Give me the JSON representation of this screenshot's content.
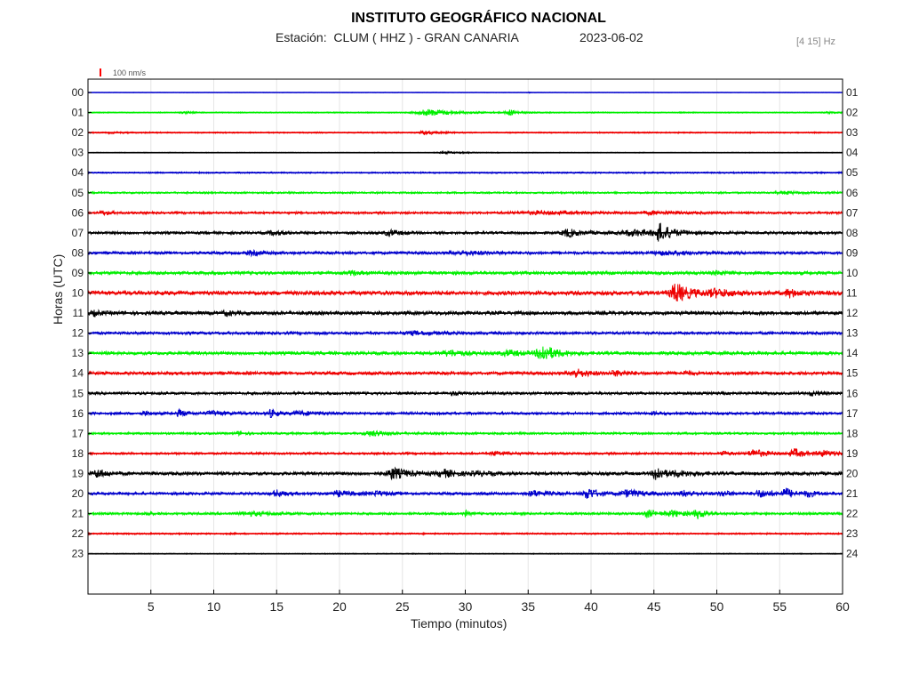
{
  "header": {
    "title": "INSTITUTO GEOGRÁFICO NACIONAL",
    "station": "Estación:  CLUM ( HHZ ) - GRAN CANARIA",
    "date": "2023-06-02",
    "filter": "[4 15] Hz"
  },
  "chart_data": {
    "type": "line",
    "title": "INSTITUTO GEOGRÁFICO NACIONAL",
    "xlabel": "Tiempo (minutos)",
    "ylabel": "Horas (UTC)",
    "xlim": [
      0,
      60
    ],
    "x_ticks": [
      5,
      10,
      15,
      20,
      25,
      30,
      35,
      40,
      45,
      50,
      55,
      60
    ],
    "grid": "vertical",
    "scale_label": "100 nm/s",
    "scale_color": "#ff0000",
    "left_labels": [
      "00",
      "01",
      "02",
      "03",
      "04",
      "05",
      "06",
      "07",
      "08",
      "09",
      "10",
      "11",
      "12",
      "13",
      "14",
      "15",
      "16",
      "17",
      "18",
      "19",
      "20",
      "21",
      "22",
      "23"
    ],
    "right_labels": [
      "01",
      "02",
      "03",
      "04",
      "05",
      "06",
      "07",
      "08",
      "09",
      "10",
      "11",
      "12",
      "13",
      "14",
      "15",
      "16",
      "17",
      "18",
      "19",
      "20",
      "21",
      "22",
      "23",
      "24"
    ],
    "trace_colors": [
      "#0000cc",
      "#00ee00",
      "#ee0000",
      "#000000"
    ],
    "traces": [
      {
        "hour": "00",
        "noise": 0.2,
        "events": [
          [
            35,
            0.6,
            0.3
          ]
        ]
      },
      {
        "hour": "01",
        "noise": 0.6,
        "events": [
          [
            7.7,
            1.2,
            0.6
          ],
          [
            27.2,
            3.5,
            2.0
          ],
          [
            33.5,
            3.2,
            0.6
          ],
          [
            59,
            0.8,
            0.8
          ]
        ]
      },
      {
        "hour": "02",
        "noise": 0.7,
        "events": [
          [
            26.8,
            2.4,
            0.8
          ],
          [
            2,
            0.6,
            1.0
          ]
        ]
      },
      {
        "hour": "03",
        "noise": 0.4,
        "events": [
          [
            28.5,
            1.2,
            1.2
          ]
        ]
      },
      {
        "hour": "04",
        "noise": 0.8,
        "events": []
      },
      {
        "hour": "05",
        "noise": 1.0,
        "events": [
          [
            55.5,
            1.4,
            1.5
          ]
        ]
      },
      {
        "hour": "06",
        "noise": 1.2,
        "events": [
          [
            1.2,
            2.0,
            0.6
          ],
          [
            36,
            1.5,
            4.0
          ],
          [
            45,
            1.2,
            2.0
          ]
        ]
      },
      {
        "hour": "07",
        "noise": 1.5,
        "events": [
          [
            14.8,
            2.0,
            1.0
          ],
          [
            24,
            3.0,
            0.8
          ],
          [
            38.2,
            4.0,
            1.0
          ],
          [
            43.5,
            3.0,
            2.0
          ],
          [
            45.5,
            9.0,
            0.8
          ]
        ]
      },
      {
        "hour": "08",
        "noise": 1.5,
        "events": [
          [
            13,
            2.0,
            1.0
          ],
          [
            30,
            1.8,
            2.0
          ],
          [
            46,
            1.8,
            2.0
          ]
        ]
      },
      {
        "hour": "09",
        "noise": 1.8,
        "events": [
          [
            21,
            1.8,
            0.5
          ],
          [
            50,
            1.8,
            0.6
          ]
        ]
      },
      {
        "hour": "10",
        "noise": 2.2,
        "events": [
          [
            46.8,
            10.0,
            1.0
          ],
          [
            50,
            3.5,
            1.3
          ],
          [
            55.8,
            4.0,
            0.7
          ]
        ]
      },
      {
        "hour": "11",
        "noise": 2.0,
        "events": [
          [
            11,
            2.0,
            0.6
          ],
          [
            0.5,
            2.2,
            0.5
          ]
        ]
      },
      {
        "hour": "12",
        "noise": 1.5,
        "events": [
          [
            26,
            1.5,
            2.0
          ]
        ]
      },
      {
        "hour": "13",
        "noise": 1.8,
        "events": [
          [
            28.8,
            3.0,
            1.0
          ],
          [
            33.5,
            2.5,
            1.2
          ],
          [
            36.2,
            9.0,
            0.9
          ]
        ]
      },
      {
        "hour": "14",
        "noise": 1.7,
        "events": [
          [
            38.8,
            4.5,
            0.9
          ],
          [
            42,
            2.2,
            1.0
          ],
          [
            47.5,
            2.0,
            0.5
          ]
        ]
      },
      {
        "hour": "15",
        "noise": 1.5,
        "events": [
          [
            29,
            1.6,
            0.4
          ],
          [
            57.6,
            2.2,
            0.6
          ]
        ]
      },
      {
        "hour": "16",
        "noise": 1.4,
        "events": [
          [
            4.5,
            2.0,
            0.5
          ],
          [
            7.3,
            3.5,
            0.5
          ],
          [
            10,
            2.0,
            1.2
          ],
          [
            14.5,
            4.0,
            0.5
          ],
          [
            17,
            1.8,
            1.5
          ],
          [
            45,
            1.4,
            0.5
          ]
        ]
      },
      {
        "hour": "17",
        "noise": 1.2,
        "events": [
          [
            12,
            1.5,
            0.6
          ],
          [
            22.6,
            3.0,
            1.0
          ]
        ]
      },
      {
        "hour": "18",
        "noise": 1.2,
        "events": [
          [
            32.5,
            2.0,
            1.0
          ],
          [
            50.5,
            2.5,
            0.5
          ],
          [
            53,
            4.0,
            1.0
          ],
          [
            56.2,
            4.5,
            0.7
          ],
          [
            58.5,
            2.8,
            1.0
          ]
        ]
      },
      {
        "hour": "19",
        "noise": 1.8,
        "events": [
          [
            0.8,
            4.5,
            0.6
          ],
          [
            24.3,
            6.0,
            1.0
          ],
          [
            28.3,
            4.0,
            0.9
          ],
          [
            31,
            2.0,
            0.8
          ],
          [
            45.2,
            9.0,
            0.5
          ],
          [
            47,
            2.4,
            1.2
          ]
        ]
      },
      {
        "hour": "20",
        "noise": 1.5,
        "events": [
          [
            15,
            3.5,
            0.6
          ],
          [
            20,
            2.5,
            1.2
          ],
          [
            23,
            2.0,
            0.8
          ],
          [
            35.5,
            3.0,
            1.0
          ],
          [
            39.8,
            6.0,
            0.7
          ],
          [
            43,
            3.5,
            1.3
          ],
          [
            47.5,
            3.0,
            0.8
          ],
          [
            50.5,
            2.5,
            0.7
          ],
          [
            53.5,
            3.5,
            1.0
          ],
          [
            55.5,
            5.0,
            0.6
          ],
          [
            57.3,
            3.0,
            0.6
          ]
        ]
      },
      {
        "hour": "21",
        "noise": 1.3,
        "events": [
          [
            4.7,
            2.2,
            0.3
          ],
          [
            13,
            2.0,
            1.8
          ],
          [
            30,
            3.0,
            0.3
          ],
          [
            44.5,
            4.0,
            0.7
          ],
          [
            46.5,
            3.0,
            1.0
          ],
          [
            48.5,
            4.5,
            0.6
          ]
        ]
      },
      {
        "hour": "22",
        "noise": 0.9,
        "events": []
      },
      {
        "hour": "23",
        "noise": 0.5,
        "events": []
      }
    ]
  }
}
